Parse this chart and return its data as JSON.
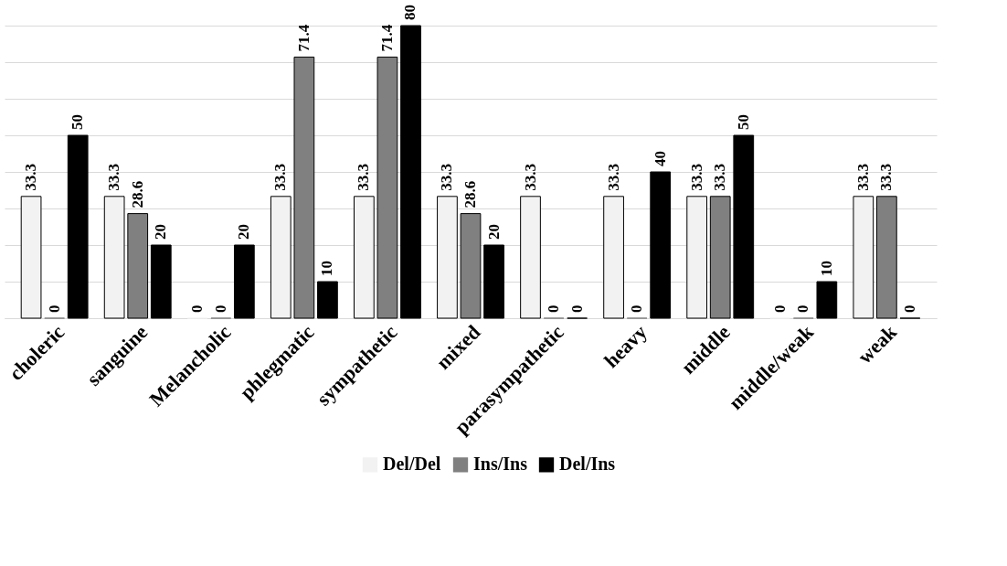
{
  "chart_data": {
    "type": "bar",
    "categories": [
      "choleric",
      "sanguine",
      "Melancholic",
      "phlegmatic",
      "sympathetic",
      "mixed",
      "parasympathetic",
      "heavy",
      "middle",
      "middle/weak",
      "weak"
    ],
    "series": [
      {
        "name": "Del/Del",
        "color": "#f2f2f2",
        "values": [
          33.3,
          33.3,
          0,
          33.3,
          33.3,
          33.3,
          33.3,
          33.3,
          33.3,
          0,
          33.3
        ]
      },
      {
        "name": "Ins/Ins",
        "color": "#808080",
        "values": [
          0,
          28.6,
          0,
          71.4,
          71.4,
          28.6,
          0,
          0,
          33.3,
          0,
          33.3
        ]
      },
      {
        "name": "Del/Ins",
        "color": "#000000",
        "values": [
          50,
          20,
          20,
          10,
          80,
          20,
          0,
          40,
          50,
          10,
          0
        ]
      }
    ],
    "tick_labels": "x",
    "grid": "y",
    "legend": "bottom",
    "data_labels": true
  }
}
